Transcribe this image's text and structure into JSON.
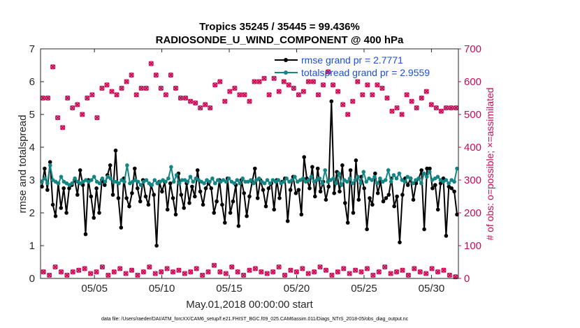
{
  "chart_data": {
    "type": "line",
    "title_line1": "Tropics 35245 / 35445 = 99.436%",
    "title_line2": "RADIOSONDE_U_WIND_COMPONENT @ 400 hPa",
    "xlabel": "May.01,2018 00:00:00 start",
    "ylabel_left": "rmse and totalspread",
    "ylabel_right": "# of obs: o=possible; ×=assimilated",
    "footer": "data file: /Users/raeder/DAI/ATM_forcXX/CAM6_setup/f.e21.FHIST_BGC.f09_025.CAM6assim.011/Diags_NTrS_2018-05/obs_diag_output.nc",
    "x_range_days": [
      1,
      32
    ],
    "ylim_left": [
      0,
      7
    ],
    "ylim_right": [
      0,
      700
    ],
    "left_ticks": [
      "0",
      "1",
      "2",
      "3",
      "4",
      "5",
      "6",
      "7"
    ],
    "right_ticks": [
      "0",
      "100",
      "200",
      "300",
      "400",
      "500",
      "600",
      "700"
    ],
    "x_ticks": [
      {
        "day": 5,
        "label": "05/05"
      },
      {
        "day": 10,
        "label": "05/10"
      },
      {
        "day": 15,
        "label": "05/15"
      },
      {
        "day": 20,
        "label": "05/20"
      },
      {
        "day": 25,
        "label": "05/25"
      },
      {
        "day": 30,
        "label": "05/30"
      }
    ],
    "legend": [
      {
        "name": "rmse grand pr = 2.7771",
        "color": "#000000"
      },
      {
        "name": "totalspread grand pr = 2.9559",
        "color": "#148585"
      }
    ],
    "series": [
      {
        "name": "rmse",
        "color": "#000000",
        "values": [
          2.8,
          3.35,
          2.7,
          3.55,
          2.25,
          1.9,
          2.9,
          2.15,
          2.75,
          2.0,
          2.75,
          2.85,
          3.0,
          2.55,
          3.3,
          2.85,
          1.35,
          3.0,
          2.5,
          1.85,
          2.75,
          2.0,
          3.0,
          2.85,
          3.15,
          3.45,
          2.55,
          3.9,
          2.45,
          1.55,
          3.05,
          2.45,
          2.2,
          2.6,
          3.35,
          2.75,
          2.35,
          3.0,
          2.5,
          2.25,
          2.85,
          2.55,
          1.0,
          2.95,
          2.65,
          2.95,
          2.1,
          2.9,
          2.45,
          1.95,
          3.2,
          2.55,
          2.15,
          2.9,
          2.3,
          2.8,
          2.5,
          3.3,
          2.65,
          2.25,
          2.75,
          2.9,
          2.75,
          2.0,
          2.35,
          3.0,
          2.25,
          1.7,
          3.05,
          2.0,
          2.35,
          2.85,
          1.6,
          3.0,
          2.6,
          1.9,
          2.5,
          2.95,
          3.35,
          2.45,
          3.0,
          2.7,
          2.2,
          2.75,
          2.9,
          2.1,
          3.0,
          2.45,
          2.95,
          3.05,
          1.75,
          2.7,
          3.1,
          2.6,
          2.7,
          1.95,
          3.7,
          3.05,
          2.75,
          3.4,
          2.5,
          3.35,
          2.65,
          2.95,
          2.4,
          2.8,
          5.4,
          2.6,
          3.25,
          2.65,
          3.45,
          2.3,
          1.7,
          3.3,
          2.0,
          3.6,
          2.4,
          3.1,
          2.75,
          1.5,
          2.45,
          2.25,
          3.2,
          2.6,
          2.95,
          2.35,
          2.45,
          2.55,
          3.05,
          2.2,
          2.5,
          1.1,
          2.55,
          3.05,
          2.85,
          3.05,
          2.4,
          2.9,
          3.05,
          3.3,
          1.5,
          3.35,
          3.35,
          2.75,
          2.85,
          2.1,
          2.9,
          3.05,
          1.3,
          2.8,
          2.75,
          2.65,
          1.95
        ]
      },
      {
        "name": "totalspread",
        "color": "#148585",
        "values": [
          2.95,
          3.05,
          2.9,
          3.45,
          3.0,
          2.95,
          2.9,
          3.1,
          2.95,
          2.9,
          2.85,
          2.9,
          3.05,
          2.95,
          2.9,
          2.95,
          3.0,
          2.95,
          3.0,
          3.1,
          2.95,
          2.9,
          3.05,
          2.95,
          3.1,
          3.05,
          2.95,
          2.95,
          2.9,
          3.0,
          2.95,
          3.45,
          2.9,
          2.95,
          3.0,
          2.95,
          2.85,
          2.95,
          3.0,
          2.9,
          2.85,
          3.0,
          2.9,
          2.95,
          3.0,
          2.95,
          3.05,
          3.4,
          2.95,
          3.15,
          2.9,
          3.0,
          3.0,
          2.95,
          3.1,
          2.95,
          3.05,
          3.0,
          2.95,
          2.9,
          3.0,
          2.95,
          3.05,
          2.9,
          3.0,
          2.95,
          3.0,
          2.95,
          3.05,
          2.95,
          2.9,
          3.0,
          2.9,
          3.05,
          2.95,
          2.95,
          3.0,
          2.9,
          3.0,
          3.05,
          2.95,
          2.9,
          3.0,
          2.9,
          3.0,
          2.95,
          3.0,
          2.9,
          2.95,
          3.05,
          2.95,
          3.0,
          3.1,
          2.95,
          3.0,
          3.05,
          2.95,
          3.0,
          3.1,
          2.95,
          3.0,
          3.05,
          2.9,
          3.3,
          2.95,
          3.0,
          3.05,
          2.9,
          3.2,
          2.85,
          3.0,
          2.95,
          3.05,
          2.9,
          3.0,
          3.1,
          2.9,
          3.25,
          2.95,
          3.05,
          3.0,
          3.1,
          2.9,
          3.05,
          2.95,
          3.0,
          3.3,
          2.95,
          3.15,
          3.05,
          3.2,
          3.0,
          2.95,
          3.1,
          3.05,
          2.9,
          3.0,
          3.05,
          2.9,
          3.2,
          3.1,
          3.25,
          3.0,
          3.05,
          3.1,
          3.0,
          2.95,
          3.0,
          2.9,
          3.0,
          2.95,
          3.35
        ]
      },
      {
        "name": "obs possible",
        "color": "#cc0a55",
        "values": [
          550,
          550,
          645,
          490,
          460,
          550,
          520,
          530,
          500,
          550,
          560,
          490,
          580,
          590,
          570,
          560,
          580,
          600,
          620,
          560,
          580,
          580,
          655,
          620,
          580,
          560,
          620,
          580,
          550,
          550,
          540,
          535,
          520,
          530,
          520,
          590,
          600,
          540,
          570,
          580,
          560,
          560,
          540,
          600,
          600,
          610,
          560,
          610,
          570,
          600,
          590,
          580,
          560,
          570,
          600,
          600,
          560,
          590,
          630,
          590,
          570,
          530,
          500,
          540,
          600,
          560,
          590,
          560,
          590,
          580,
          550,
          510,
          520,
          500,
          560,
          540,
          520,
          550,
          570,
          530,
          520,
          510,
          520,
          520,
          520
        ]
      },
      {
        "name": "obs assimilated",
        "color": "#cc0a55",
        "values": [
          550,
          550,
          645,
          490,
          460,
          550,
          520,
          530,
          500,
          550,
          560,
          490,
          580,
          590,
          570,
          560,
          580,
          600,
          620,
          560,
          580,
          580,
          655,
          620,
          580,
          560,
          620,
          580,
          550,
          550,
          540,
          535,
          520,
          530,
          520,
          590,
          600,
          540,
          570,
          580,
          560,
          560,
          540,
          600,
          600,
          610,
          560,
          610,
          570,
          600,
          590,
          580,
          560,
          570,
          600,
          600,
          560,
          590,
          630,
          590,
          570,
          530,
          500,
          540,
          600,
          560,
          590,
          560,
          590,
          580,
          550,
          510,
          520,
          500,
          560,
          540,
          520,
          550,
          570,
          530,
          520,
          510,
          520,
          520,
          520
        ]
      },
      {
        "name": "obs low possible",
        "color": "#cc0a55",
        "values": [
          20,
          10,
          35,
          20,
          10,
          20,
          25,
          30,
          15,
          20,
          35,
          10,
          20,
          30,
          15,
          25,
          10,
          20,
          35,
          15,
          20,
          30,
          20,
          25,
          15,
          20,
          30,
          10,
          20,
          40,
          20,
          15,
          35,
          20,
          10,
          25,
          30,
          20,
          15,
          20,
          35,
          10,
          25,
          20,
          30,
          15,
          20,
          35,
          25,
          10,
          20,
          30,
          15,
          25,
          20,
          30,
          10,
          20,
          35,
          15,
          20,
          25,
          10,
          30,
          20,
          15,
          30,
          20,
          25,
          10,
          5
        ]
      },
      {
        "name": "obs low assimilated",
        "color": "#cc0a55",
        "values": [
          20,
          10,
          35,
          20,
          10,
          20,
          25,
          30,
          15,
          20,
          35,
          10,
          20,
          30,
          15,
          25,
          10,
          20,
          35,
          15,
          20,
          30,
          20,
          25,
          15,
          20,
          30,
          10,
          20,
          40,
          20,
          15,
          35,
          20,
          10,
          25,
          30,
          20,
          15,
          20,
          35,
          10,
          25,
          20,
          30,
          15,
          20,
          35,
          25,
          10,
          20,
          30,
          15,
          25,
          20,
          30,
          10,
          20,
          35,
          15,
          20,
          25,
          10,
          30,
          20,
          15,
          30,
          20,
          25,
          10,
          5
        ]
      }
    ]
  }
}
